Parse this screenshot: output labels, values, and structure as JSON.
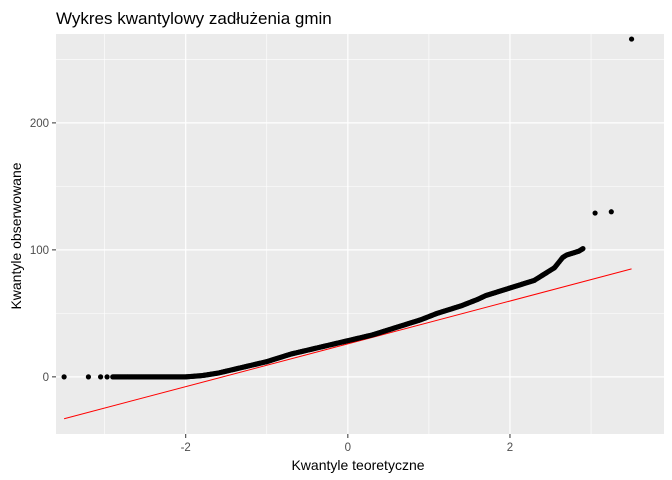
{
  "chart_data": {
    "type": "scatter",
    "title": "Wykres kwantylowy zadłużenia gmin",
    "xlabel": "Kwantyle teoretyczne",
    "ylabel": "Kwantyle obserwowane",
    "xlim": [
      -3.6,
      3.9
    ],
    "ylim": [
      -45,
      270
    ],
    "xticks": [
      -2,
      0,
      2
    ],
    "xtick_labels": [
      "-2",
      "0",
      "2"
    ],
    "yticks": [
      0,
      100,
      200
    ],
    "ytick_labels": [
      "0",
      "100",
      "200"
    ],
    "grid": true,
    "background_color": "#ebebeb",
    "grid_color": "#ffffff",
    "point_color": "#000000",
    "line_color": "#ff0000",
    "reference_line": {
      "x": [
        -3.5,
        3.5
      ],
      "y": [
        -33,
        85
      ]
    },
    "series": [
      {
        "x": [
          -3.5,
          -3.2,
          -3.05,
          -2.97,
          -2.9,
          -2.85,
          -2.8,
          -2.75,
          -2.7,
          -2.6,
          -2.5,
          -2.4,
          -2.3,
          -2.2,
          -2.1,
          -2.0,
          -1.9,
          -1.8,
          -1.7,
          -1.6,
          -1.5,
          -1.4,
          -1.3,
          -1.2,
          -1.1,
          -1.0,
          -0.9,
          -0.8,
          -0.7,
          -0.6,
          -0.5,
          -0.4,
          -0.3,
          -0.2,
          -0.1,
          0.0,
          0.1,
          0.2,
          0.3,
          0.4,
          0.5,
          0.6,
          0.7,
          0.8,
          0.9,
          1.0,
          1.1,
          1.2,
          1.3,
          1.4,
          1.5,
          1.6,
          1.7,
          1.8,
          1.9,
          2.0,
          2.1,
          2.2,
          2.3,
          2.4,
          2.45,
          2.5,
          2.55,
          2.6,
          2.65,
          2.7,
          2.75,
          2.8,
          2.85,
          2.9,
          3.05,
          3.25,
          3.5
        ],
        "y": [
          0,
          0,
          0,
          0,
          0,
          0,
          0,
          0,
          0,
          0,
          0,
          0,
          0,
          0,
          0,
          0,
          0.5,
          1,
          2,
          3,
          4.5,
          6,
          7.5,
          9,
          10.5,
          12,
          14,
          16,
          18,
          19.5,
          21,
          22.5,
          24,
          25.5,
          27,
          28.5,
          30,
          31.5,
          33,
          35,
          37,
          39,
          41,
          43,
          45,
          47.5,
          50,
          52,
          54,
          56,
          58.5,
          61,
          64,
          66,
          68,
          70,
          72,
          74,
          76,
          80,
          82,
          84,
          86,
          90,
          94,
          96,
          97,
          98,
          99,
          101,
          129,
          130,
          266
        ]
      }
    ]
  }
}
